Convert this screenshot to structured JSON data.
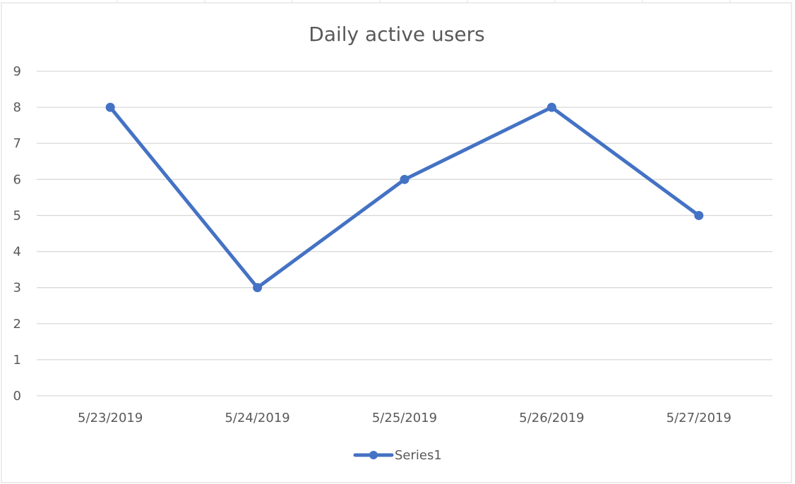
{
  "chart_data": {
    "type": "line",
    "title": "Daily active users",
    "xlabel": "",
    "ylabel": "",
    "categories": [
      "5/23/2019",
      "5/24/2019",
      "5/25/2019",
      "5/26/2019",
      "5/27/2019"
    ],
    "series": [
      {
        "name": "Series1",
        "values": [
          8,
          3,
          6,
          8,
          5
        ],
        "color": "#4472C4"
      }
    ],
    "ylim": [
      0,
      9
    ],
    "yticks": [
      "0",
      "1",
      "2",
      "3",
      "4",
      "5",
      "6",
      "7",
      "8",
      "9"
    ],
    "grid": true,
    "legend_position": "bottom",
    "colors": {
      "grid": "#D9D9D9",
      "text": "#595959",
      "frame": "#D9D9D9"
    }
  }
}
